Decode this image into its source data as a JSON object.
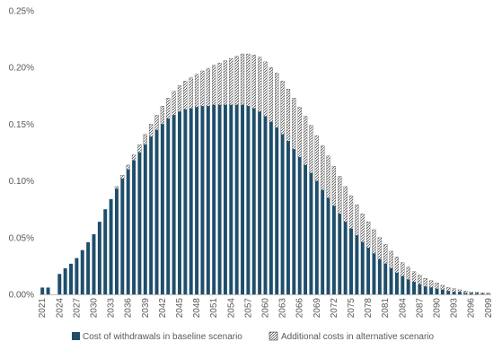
{
  "chart_data": {
    "type": "bar",
    "stacked": true,
    "title": "",
    "xlabel": "",
    "ylabel": "",
    "ylim": [
      0,
      0.25
    ],
    "yticks": [
      "0.00%",
      "0.05%",
      "0.10%",
      "0.15%",
      "0.20%",
      "0.25%"
    ],
    "ytick_values": [
      0,
      0.05,
      0.1,
      0.15,
      0.2,
      0.25
    ],
    "grid": false,
    "legend_position": "bottom",
    "colors": {
      "baseline": "#1f4e6b",
      "alternative_fill": "#ffffff",
      "alternative_hatch": "#3a3a3a",
      "axis": "#bfbfbf",
      "text": "#595959"
    },
    "x_start": 2021,
    "x_end": 2099,
    "tick_every": 3,
    "series": [
      {
        "name": "Cost of withdrawals in baseline scenario",
        "values": [
          0.006,
          0.006,
          0.0,
          0.018,
          0.023,
          0.027,
          0.032,
          0.039,
          0.046,
          0.053,
          0.064,
          0.075,
          0.084,
          0.093,
          0.102,
          0.11,
          0.118,
          0.125,
          0.132,
          0.139,
          0.145,
          0.15,
          0.155,
          0.158,
          0.161,
          0.163,
          0.164,
          0.165,
          0.166,
          0.166,
          0.167,
          0.167,
          0.167,
          0.167,
          0.167,
          0.167,
          0.166,
          0.164,
          0.161,
          0.157,
          0.152,
          0.147,
          0.141,
          0.135,
          0.128,
          0.121,
          0.114,
          0.107,
          0.1,
          0.092,
          0.085,
          0.078,
          0.071,
          0.064,
          0.058,
          0.052,
          0.046,
          0.041,
          0.036,
          0.031,
          0.027,
          0.023,
          0.019,
          0.016,
          0.013,
          0.011,
          0.009,
          0.007,
          0.006,
          0.005,
          0.004,
          0.003,
          0.002,
          0.002,
          0.001,
          0.001,
          0.001,
          0.0005,
          0.0003
        ]
      },
      {
        "name": "Additional costs in alternative scenario",
        "values": [
          0.0,
          0.0,
          0.0,
          0.0,
          0.0,
          0.0,
          0.0,
          0.0,
          0.0,
          0.0,
          0.0,
          0.0,
          0.0,
          0.002,
          0.003,
          0.004,
          0.005,
          0.007,
          0.009,
          0.011,
          0.013,
          0.016,
          0.018,
          0.021,
          0.023,
          0.025,
          0.027,
          0.029,
          0.031,
          0.033,
          0.035,
          0.037,
          0.039,
          0.041,
          0.043,
          0.045,
          0.046,
          0.047,
          0.048,
          0.048,
          0.048,
          0.048,
          0.047,
          0.046,
          0.045,
          0.044,
          0.043,
          0.042,
          0.04,
          0.039,
          0.037,
          0.035,
          0.033,
          0.031,
          0.029,
          0.027,
          0.025,
          0.023,
          0.021,
          0.019,
          0.017,
          0.015,
          0.014,
          0.012,
          0.011,
          0.009,
          0.008,
          0.007,
          0.006,
          0.005,
          0.004,
          0.003,
          0.003,
          0.002,
          0.002,
          0.001,
          0.001,
          0.001,
          0.001
        ]
      }
    ]
  }
}
